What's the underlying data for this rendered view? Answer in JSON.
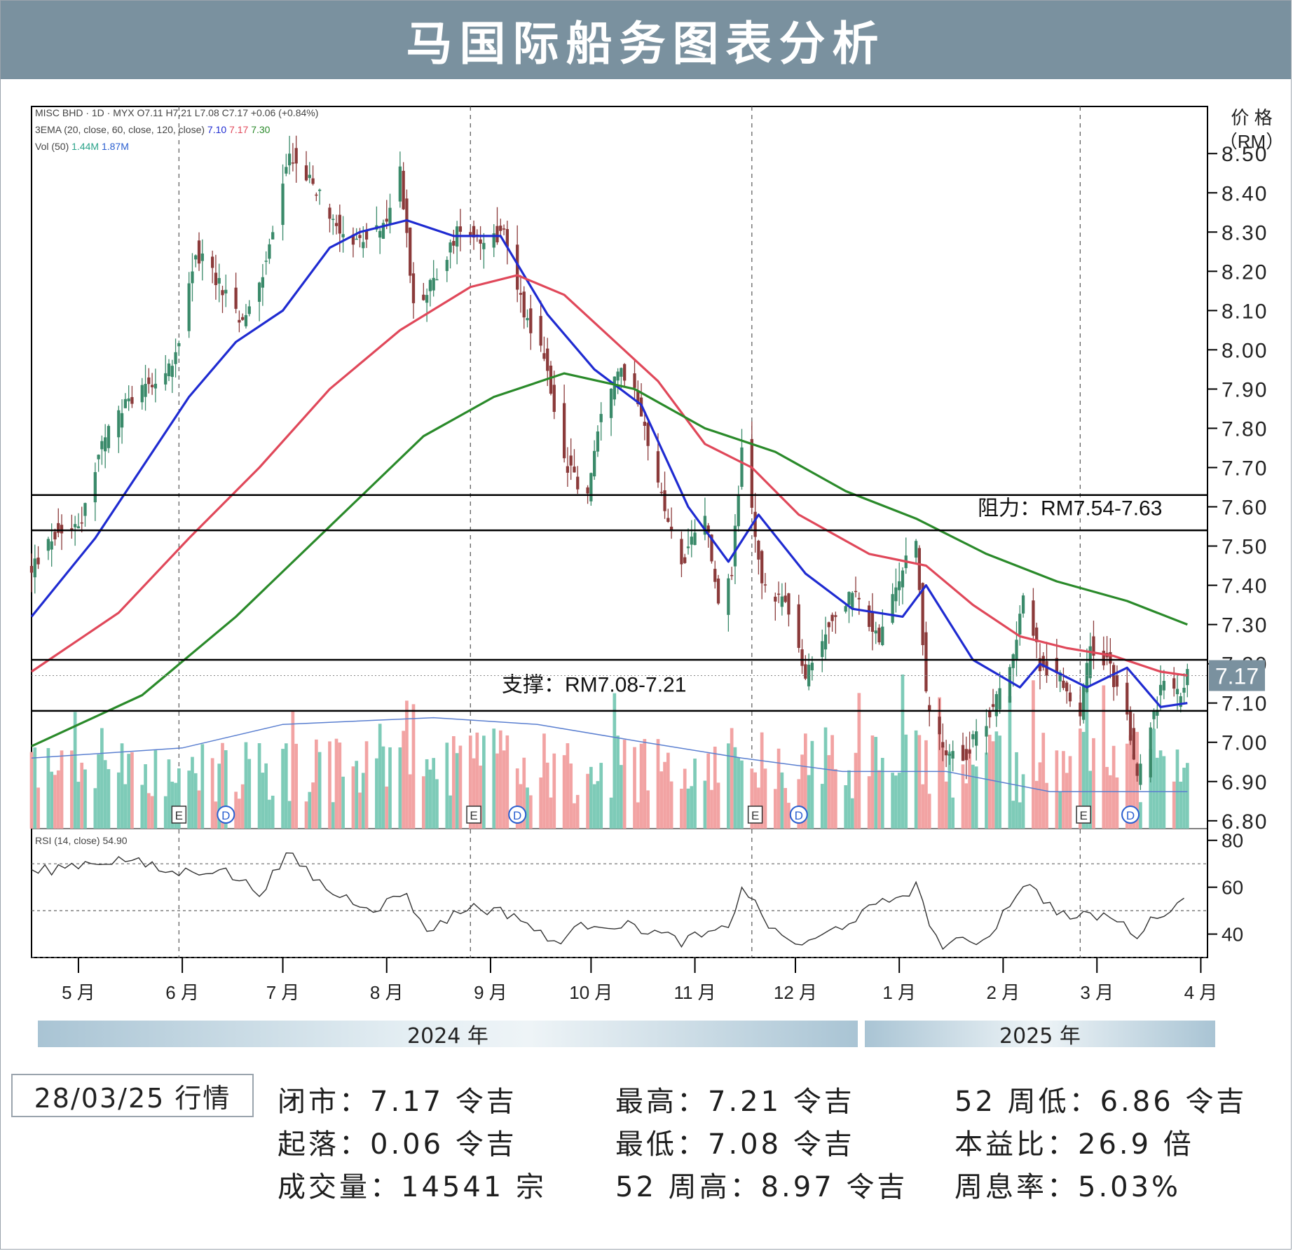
{
  "title": "马国际船务图表分析",
  "colors": {
    "header_bg": "#7a919f",
    "candle_up": "#3a8a6a",
    "candle_down": "#8b3a3a",
    "ema20": "#1f2bd1",
    "ema60": "#e0485a",
    "ema120": "#2a8a2a",
    "vol_up": "#7ecbb8",
    "vol_down": "#f2a3a3",
    "vol_ma": "#5a7fd0"
  },
  "legend": {
    "line1": "MISC BHD · 1D · MYX  O7.11  H7.21  L7.08  C7.17  +0.06 (+0.84%)",
    "line2_prefix": "3EMA (20, close, 60, close, 120, close)",
    "ema_values": [
      "7.10",
      "7.17",
      "7.30"
    ],
    "line3_prefix": "Vol (50)",
    "vol_values": [
      "1.44M",
      "1.87M"
    ],
    "rsi": "RSI (14, close)  54.90"
  },
  "annotations": {
    "resistance": "阻力：RM7.54-7.63",
    "support": "支撑：RM7.08-7.21",
    "last_price": "7.17",
    "earnings_marker": "E",
    "dividend_marker": "D"
  },
  "axis": {
    "y_title_line1": "价 格",
    "y_title_line2": "（RM）"
  },
  "chart_data": {
    "type": "line",
    "title": "马国际船务图表分析",
    "ylim": [
      6.78,
      8.62
    ],
    "y_ticks": [
      "8.50",
      "8.40",
      "8.30",
      "8.20",
      "8.10",
      "8.00",
      "7.90",
      "7.80",
      "7.70",
      "7.60",
      "7.50",
      "7.40",
      "7.30",
      "7.20",
      "7.10",
      "7.00",
      "6.90",
      "6.80"
    ],
    "rsi_ticks": [
      "80",
      "60",
      "40"
    ],
    "rsi_range": [
      30,
      85
    ],
    "rsi_levels": [
      70,
      50,
      30
    ],
    "x_range": [
      "2024-04-17",
      "2025-04-03"
    ],
    "months": [
      {
        "label": "5 月",
        "date": "2024-05-01"
      },
      {
        "label": "6 月",
        "date": "2024-06-01"
      },
      {
        "label": "7 月",
        "date": "2024-07-01"
      },
      {
        "label": "8 月",
        "date": "2024-08-01"
      },
      {
        "label": "9 月",
        "date": "2024-09-01"
      },
      {
        "label": "10 月",
        "date": "2024-10-01"
      },
      {
        "label": "11 月",
        "date": "2024-11-01"
      },
      {
        "label": "12 月",
        "date": "2024-12-01"
      },
      {
        "label": "1 月",
        "date": "2025-01-01"
      },
      {
        "label": "2 月",
        "date": "2025-02-01"
      },
      {
        "label": "3 月",
        "date": "2025-03-01"
      },
      {
        "label": "4 月",
        "date": "2025-04-01"
      }
    ],
    "years": [
      {
        "label": "2024 年",
        "from": "2024-04-17",
        "to": "2024-12-31"
      },
      {
        "label": "2025 年",
        "from": "2025-01-01",
        "to": "2025-04-03"
      }
    ],
    "resistance_zone": [
      7.54,
      7.63
    ],
    "support_zone": [
      7.08,
      7.21
    ],
    "last_price": 7.17,
    "event_dates": [
      "2024-05-31",
      "2024-08-26",
      "2024-11-18",
      "2025-02-24"
    ],
    "earnings_dates": [
      "2024-05-31",
      "2024-08-27",
      "2024-11-19",
      "2025-02-25"
    ],
    "dividend_dates": [
      "2024-06-14",
      "2024-09-09",
      "2024-12-02",
      "2025-03-11"
    ],
    "price_path": [
      {
        "date": "2024-04-17",
        "close": 7.44
      },
      {
        "date": "2024-04-24",
        "close": 7.53
      },
      {
        "date": "2024-05-02",
        "close": 7.57
      },
      {
        "date": "2024-05-08",
        "close": 7.76
      },
      {
        "date": "2024-05-15",
        "close": 7.86
      },
      {
        "date": "2024-05-22",
        "close": 7.92
      },
      {
        "date": "2024-05-29",
        "close": 7.95
      },
      {
        "date": "2024-06-05",
        "close": 8.25
      },
      {
        "date": "2024-06-12",
        "close": 8.17
      },
      {
        "date": "2024-06-19",
        "close": 8.06
      },
      {
        "date": "2024-06-26",
        "close": 8.22
      },
      {
        "date": "2024-07-03",
        "close": 8.5
      },
      {
        "date": "2024-07-10",
        "close": 8.42
      },
      {
        "date": "2024-07-17",
        "close": 8.32
      },
      {
        "date": "2024-07-24",
        "close": 8.27
      },
      {
        "date": "2024-07-31",
        "close": 8.31
      },
      {
        "date": "2024-08-05",
        "close": 8.45
      },
      {
        "date": "2024-08-09",
        "close": 8.12
      },
      {
        "date": "2024-08-16",
        "close": 8.18
      },
      {
        "date": "2024-08-23",
        "close": 8.32
      },
      {
        "date": "2024-08-30",
        "close": 8.28
      },
      {
        "date": "2024-09-05",
        "close": 8.3
      },
      {
        "date": "2024-09-11",
        "close": 8.1
      },
      {
        "date": "2024-09-17",
        "close": 7.98
      },
      {
        "date": "2024-09-23",
        "close": 7.72
      },
      {
        "date": "2024-09-30",
        "close": 7.62
      },
      {
        "date": "2024-10-04",
        "close": 7.85
      },
      {
        "date": "2024-10-10",
        "close": 7.95
      },
      {
        "date": "2024-10-15",
        "close": 7.88
      },
      {
        "date": "2024-10-21",
        "close": 7.65
      },
      {
        "date": "2024-10-28",
        "close": 7.45
      },
      {
        "date": "2024-11-04",
        "close": 7.58
      },
      {
        "date": "2024-11-08",
        "close": 7.35
      },
      {
        "date": "2024-11-12",
        "close": 7.42
      },
      {
        "date": "2024-11-15",
        "close": 7.76
      },
      {
        "date": "2024-11-21",
        "close": 7.4
      },
      {
        "date": "2024-11-28",
        "close": 7.36
      },
      {
        "date": "2024-12-04",
        "close": 7.16
      },
      {
        "date": "2024-12-11",
        "close": 7.3
      },
      {
        "date": "2024-12-18",
        "close": 7.38
      },
      {
        "date": "2024-12-26",
        "close": 7.26
      },
      {
        "date": "2025-01-02",
        "close": 7.44
      },
      {
        "date": "2025-01-06",
        "close": 7.52
      },
      {
        "date": "2025-01-09",
        "close": 7.12
      },
      {
        "date": "2025-01-14",
        "close": 6.99
      },
      {
        "date": "2025-01-20",
        "close": 6.96
      },
      {
        "date": "2025-01-27",
        "close": 7.06
      },
      {
        "date": "2025-02-03",
        "close": 7.18
      },
      {
        "date": "2025-02-07",
        "close": 7.38
      },
      {
        "date": "2025-02-12",
        "close": 7.2
      },
      {
        "date": "2025-02-18",
        "close": 7.16
      },
      {
        "date": "2025-02-24",
        "close": 7.08
      },
      {
        "date": "2025-02-27",
        "close": 7.24
      },
      {
        "date": "2025-03-04",
        "close": 7.21
      },
      {
        "date": "2025-03-10",
        "close": 7.06
      },
      {
        "date": "2025-03-13",
        "close": 6.9
      },
      {
        "date": "2025-03-17",
        "close": 7.04
      },
      {
        "date": "2025-03-21",
        "close": 7.16
      },
      {
        "date": "2025-03-25",
        "close": 7.12
      },
      {
        "date": "2025-03-28",
        "close": 7.17
      }
    ],
    "series": [
      {
        "name": "EMA 20",
        "points": [
          {
            "date": "2024-04-17",
            "value": 7.32
          },
          {
            "date": "2024-05-06",
            "value": 7.52
          },
          {
            "date": "2024-05-20",
            "value": 7.7
          },
          {
            "date": "2024-06-03",
            "value": 7.88
          },
          {
            "date": "2024-06-17",
            "value": 8.02
          },
          {
            "date": "2024-07-01",
            "value": 8.1
          },
          {
            "date": "2024-07-15",
            "value": 8.26
          },
          {
            "date": "2024-07-24",
            "value": 8.3
          },
          {
            "date": "2024-08-07",
            "value": 8.33
          },
          {
            "date": "2024-08-21",
            "value": 8.29
          },
          {
            "date": "2024-09-04",
            "value": 8.29
          },
          {
            "date": "2024-09-18",
            "value": 8.09
          },
          {
            "date": "2024-10-02",
            "value": 7.95
          },
          {
            "date": "2024-10-16",
            "value": 7.86
          },
          {
            "date": "2024-10-30",
            "value": 7.6
          },
          {
            "date": "2024-11-11",
            "value": 7.46
          },
          {
            "date": "2024-11-20",
            "value": 7.58
          },
          {
            "date": "2024-12-04",
            "value": 7.43
          },
          {
            "date": "2024-12-18",
            "value": 7.34
          },
          {
            "date": "2025-01-02",
            "value": 7.32
          },
          {
            "date": "2025-01-09",
            "value": 7.4
          },
          {
            "date": "2025-01-23",
            "value": 7.21
          },
          {
            "date": "2025-02-06",
            "value": 7.14
          },
          {
            "date": "2025-02-12",
            "value": 7.2
          },
          {
            "date": "2025-02-26",
            "value": 7.14
          },
          {
            "date": "2025-03-10",
            "value": 7.19
          },
          {
            "date": "2025-03-20",
            "value": 7.09
          },
          {
            "date": "2025-03-28",
            "value": 7.1
          }
        ]
      },
      {
        "name": "EMA 60",
        "points": [
          {
            "date": "2024-04-17",
            "value": 7.18
          },
          {
            "date": "2024-05-13",
            "value": 7.33
          },
          {
            "date": "2024-06-03",
            "value": 7.52
          },
          {
            "date": "2024-06-24",
            "value": 7.7
          },
          {
            "date": "2024-07-15",
            "value": 7.9
          },
          {
            "date": "2024-08-05",
            "value": 8.05
          },
          {
            "date": "2024-08-26",
            "value": 8.16
          },
          {
            "date": "2024-09-09",
            "value": 8.19
          },
          {
            "date": "2024-09-23",
            "value": 8.14
          },
          {
            "date": "2024-10-07",
            "value": 8.03
          },
          {
            "date": "2024-10-21",
            "value": 7.92
          },
          {
            "date": "2024-11-04",
            "value": 7.76
          },
          {
            "date": "2024-11-18",
            "value": 7.7
          },
          {
            "date": "2024-12-02",
            "value": 7.58
          },
          {
            "date": "2024-12-23",
            "value": 7.48
          },
          {
            "date": "2025-01-09",
            "value": 7.45
          },
          {
            "date": "2025-01-23",
            "value": 7.35
          },
          {
            "date": "2025-02-06",
            "value": 7.27
          },
          {
            "date": "2025-02-20",
            "value": 7.24
          },
          {
            "date": "2025-03-06",
            "value": 7.22
          },
          {
            "date": "2025-03-20",
            "value": 7.18
          },
          {
            "date": "2025-03-28",
            "value": 7.17
          }
        ]
      },
      {
        "name": "EMA 120",
        "points": [
          {
            "date": "2024-04-17",
            "value": 6.99
          },
          {
            "date": "2024-05-20",
            "value": 7.12
          },
          {
            "date": "2024-06-17",
            "value": 7.32
          },
          {
            "date": "2024-07-15",
            "value": 7.55
          },
          {
            "date": "2024-08-12",
            "value": 7.78
          },
          {
            "date": "2024-09-02",
            "value": 7.88
          },
          {
            "date": "2024-09-23",
            "value": 7.94
          },
          {
            "date": "2024-10-14",
            "value": 7.9
          },
          {
            "date": "2024-11-04",
            "value": 7.8
          },
          {
            "date": "2024-11-25",
            "value": 7.74
          },
          {
            "date": "2024-12-16",
            "value": 7.64
          },
          {
            "date": "2025-01-06",
            "value": 7.57
          },
          {
            "date": "2025-01-27",
            "value": 7.48
          },
          {
            "date": "2025-02-17",
            "value": 7.41
          },
          {
            "date": "2025-03-10",
            "value": 7.36
          },
          {
            "date": "2025-03-28",
            "value": 7.3
          }
        ]
      }
    ],
    "rsi_path": [
      {
        "date": "2024-04-17",
        "value": 66
      },
      {
        "date": "2024-05-01",
        "value": 70
      },
      {
        "date": "2024-05-15",
        "value": 72
      },
      {
        "date": "2024-05-29",
        "value": 66
      },
      {
        "date": "2024-06-12",
        "value": 68
      },
      {
        "date": "2024-06-24",
        "value": 58
      },
      {
        "date": "2024-07-03",
        "value": 74
      },
      {
        "date": "2024-07-15",
        "value": 58
      },
      {
        "date": "2024-07-29",
        "value": 51
      },
      {
        "date": "2024-08-07",
        "value": 58
      },
      {
        "date": "2024-08-12",
        "value": 41
      },
      {
        "date": "2024-08-26",
        "value": 52
      },
      {
        "date": "2024-09-09",
        "value": 48
      },
      {
        "date": "2024-09-19",
        "value": 36
      },
      {
        "date": "2024-10-01",
        "value": 45
      },
      {
        "date": "2024-10-15",
        "value": 43
      },
      {
        "date": "2024-10-28",
        "value": 37
      },
      {
        "date": "2024-11-11",
        "value": 42
      },
      {
        "date": "2024-11-15",
        "value": 61
      },
      {
        "date": "2024-11-25",
        "value": 40
      },
      {
        "date": "2024-12-04",
        "value": 35
      },
      {
        "date": "2024-12-20",
        "value": 48
      },
      {
        "date": "2025-01-06",
        "value": 60
      },
      {
        "date": "2025-01-13",
        "value": 35
      },
      {
        "date": "2025-01-27",
        "value": 38
      },
      {
        "date": "2025-02-07",
        "value": 62
      },
      {
        "date": "2025-02-20",
        "value": 47
      },
      {
        "date": "2025-03-04",
        "value": 48
      },
      {
        "date": "2025-03-13",
        "value": 40
      },
      {
        "date": "2025-03-21",
        "value": 50
      },
      {
        "date": "2025-03-28",
        "value": 54.9
      }
    ],
    "volume_ma": [
      {
        "date": "2024-04-17",
        "value": 0.42
      },
      {
        "date": "2024-06-01",
        "value": 0.48
      },
      {
        "date": "2024-07-01",
        "value": 0.62
      },
      {
        "date": "2024-08-15",
        "value": 0.66
      },
      {
        "date": "2024-09-15",
        "value": 0.62
      },
      {
        "date": "2024-10-15",
        "value": 0.52
      },
      {
        "date": "2024-11-15",
        "value": 0.42
      },
      {
        "date": "2024-12-15",
        "value": 0.34
      },
      {
        "date": "2025-01-15",
        "value": 0.34
      },
      {
        "date": "2025-02-15",
        "value": 0.22
      },
      {
        "date": "2025-03-28",
        "value": 0.22
      }
    ]
  },
  "stats": {
    "date_label": "28/03/25 行情",
    "close": "闭市：7.17 令吉",
    "change": "起落：0.06 令吉",
    "volume": "成交量：14541 宗",
    "high": "最高：7.21 令吉",
    "low": "最低：7.08 令吉",
    "high52": "52 周高：8.97 令吉",
    "low52": "52 周低：6.86 令吉",
    "pe": "本益比：26.9 倍",
    "yield": "周息率：5.03%"
  }
}
